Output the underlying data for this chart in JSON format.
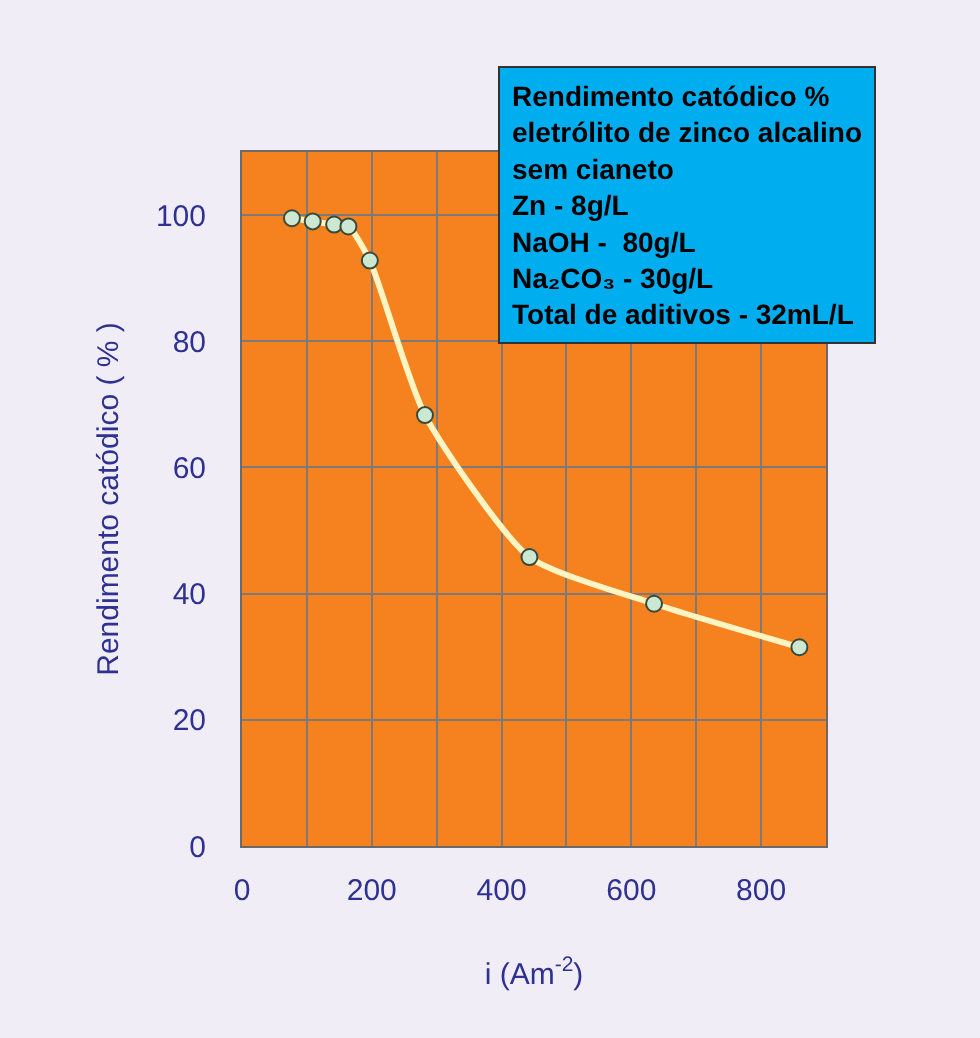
{
  "chart_data": {
    "type": "line",
    "xlabel": "i (Am$^{-2}$)",
    "ylabel": "Rendimento catódico ( % )",
    "x": [
      77,
      109,
      142,
      164,
      197,
      282,
      443,
      635,
      859
    ],
    "series": [
      {
        "color": "#fff4c2",
        "values": [
          99.5,
          99,
          98.5,
          98.2,
          92.8,
          68.3,
          45.8,
          38.4,
          31.5
        ]
      }
    ],
    "marker": "circle",
    "line_style": "solid",
    "grid": true,
    "xlim": [
      0,
      900
    ],
    "ylim": [
      0,
      110
    ],
    "xticks": [
      0,
      {
        "value": 100,
        "label": null
      },
      200,
      {
        "value": 300,
        "label": null
      },
      400,
      {
        "value": 500,
        "label": null
      },
      600,
      {
        "value": 700,
        "label": null
      },
      800
    ],
    "yticks": [
      0,
      20,
      40,
      60,
      80,
      100
    ],
    "annotations": [
      "Rendimento catódico %\neletrólito de zinco alcalino\nsem cianeto\nZn - 8g/L\nNaOH -  80g/L\nNa₂CO₃ - 30g/L\nTotal de aditivos - 32mL/L"
    ]
  }
}
